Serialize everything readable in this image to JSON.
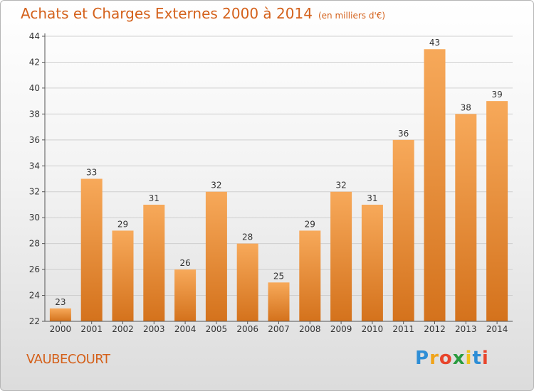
{
  "header": {
    "title": "Achats et Charges Externes 2000 à 2014",
    "unit": "(en milliers d'€)"
  },
  "footer": {
    "location": "VAUBECOURT",
    "logo_letters": [
      "P",
      "r",
      "o",
      "x",
      "i",
      "t",
      "i"
    ],
    "logo_colors": [
      "#2e8ed6",
      "#f0a41b",
      "#e8452c",
      "#2a9b3f",
      "#f0c21b",
      "#2e8ed6",
      "#e8452c"
    ]
  },
  "colors": {
    "title": "#d4611b",
    "bar_light": "#f7a95a",
    "bar_dark": "#d4721c",
    "axis": "#555555",
    "grid": "#cfcfcf"
  },
  "chart_data": {
    "type": "bar",
    "categories": [
      "2000",
      "2001",
      "2002",
      "2003",
      "2004",
      "2005",
      "2006",
      "2007",
      "2008",
      "2009",
      "2010",
      "2011",
      "2012",
      "2013",
      "2014"
    ],
    "values": [
      23,
      33,
      29,
      31,
      26,
      32,
      28,
      25,
      29,
      32,
      31,
      36,
      43,
      38,
      39
    ],
    "ylim": [
      22,
      44
    ],
    "yticks": [
      22,
      24,
      26,
      28,
      30,
      32,
      34,
      36,
      38,
      40,
      42,
      44
    ],
    "grid": true
  }
}
